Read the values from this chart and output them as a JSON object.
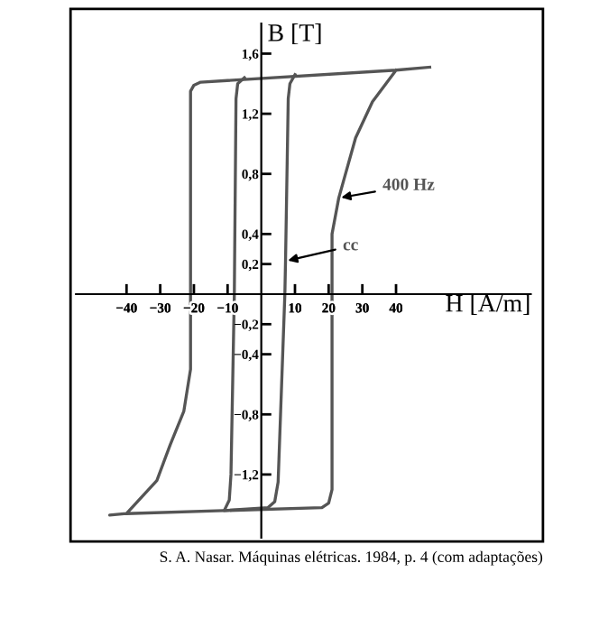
{
  "chart_data": {
    "type": "line",
    "xlabel": "H [A/m]",
    "ylabel": "B [T]",
    "xlim": [
      -55,
      80
    ],
    "ylim": [
      -1.62,
      1.8
    ],
    "xticks": [
      {
        "value": -40,
        "label": "−40"
      },
      {
        "value": -30,
        "label": "−30"
      },
      {
        "value": -20,
        "label": "−20"
      },
      {
        "value": -10,
        "label": "−10"
      },
      10,
      20,
      30,
      40
    ],
    "yticks": [
      {
        "value": 1.6,
        "label": "1,6"
      },
      {
        "value": 1.2,
        "label": "1,2"
      },
      {
        "value": 0.8,
        "label": "0,8"
      },
      {
        "value": 0.4,
        "label": "0,4"
      },
      {
        "value": 0.2,
        "label": "0,2"
      },
      {
        "value": -0.2,
        "label": "−0,2"
      },
      {
        "value": -0.4,
        "label": "−0,4"
      },
      {
        "value": -0.8,
        "label": "−0,8"
      },
      {
        "value": -1.2,
        "label": "−1,2"
      }
    ],
    "grid": false,
    "legend": false,
    "marker": "none",
    "line_style": "solid",
    "series": [
      {
        "name": "400 Hz",
        "color": "#555555",
        "x": [
          50,
          40,
          -18,
          -20,
          -21,
          -21,
          -23,
          -27,
          -31,
          -40,
          -45,
          -40,
          18,
          20,
          21,
          21,
          23,
          28,
          33,
          40
        ],
        "values": [
          1.51,
          1.49,
          1.41,
          1.39,
          1.35,
          -0.5,
          -0.78,
          -1.0,
          -1.24,
          -1.46,
          -1.47,
          -1.46,
          -1.42,
          -1.39,
          -1.3,
          0.4,
          0.64,
          1.04,
          1.28,
          1.49
        ]
      },
      {
        "name": "cc",
        "color": "#555555",
        "x": [
          -5,
          -7,
          -7.5,
          -8,
          -9,
          -9.5,
          -11,
          2,
          4,
          5,
          7,
          7.2,
          8,
          8.5,
          10
        ],
        "values": [
          1.44,
          1.4,
          1.3,
          0,
          -1.2,
          -1.37,
          -1.44,
          -1.42,
          -1.38,
          -1.25,
          0,
          0.22,
          1.3,
          1.4,
          1.46
        ]
      }
    ],
    "annotations": [
      "S. A. Nasar. Máquinas elétricas. 1984, p. 4 (com adaptações)"
    ]
  }
}
